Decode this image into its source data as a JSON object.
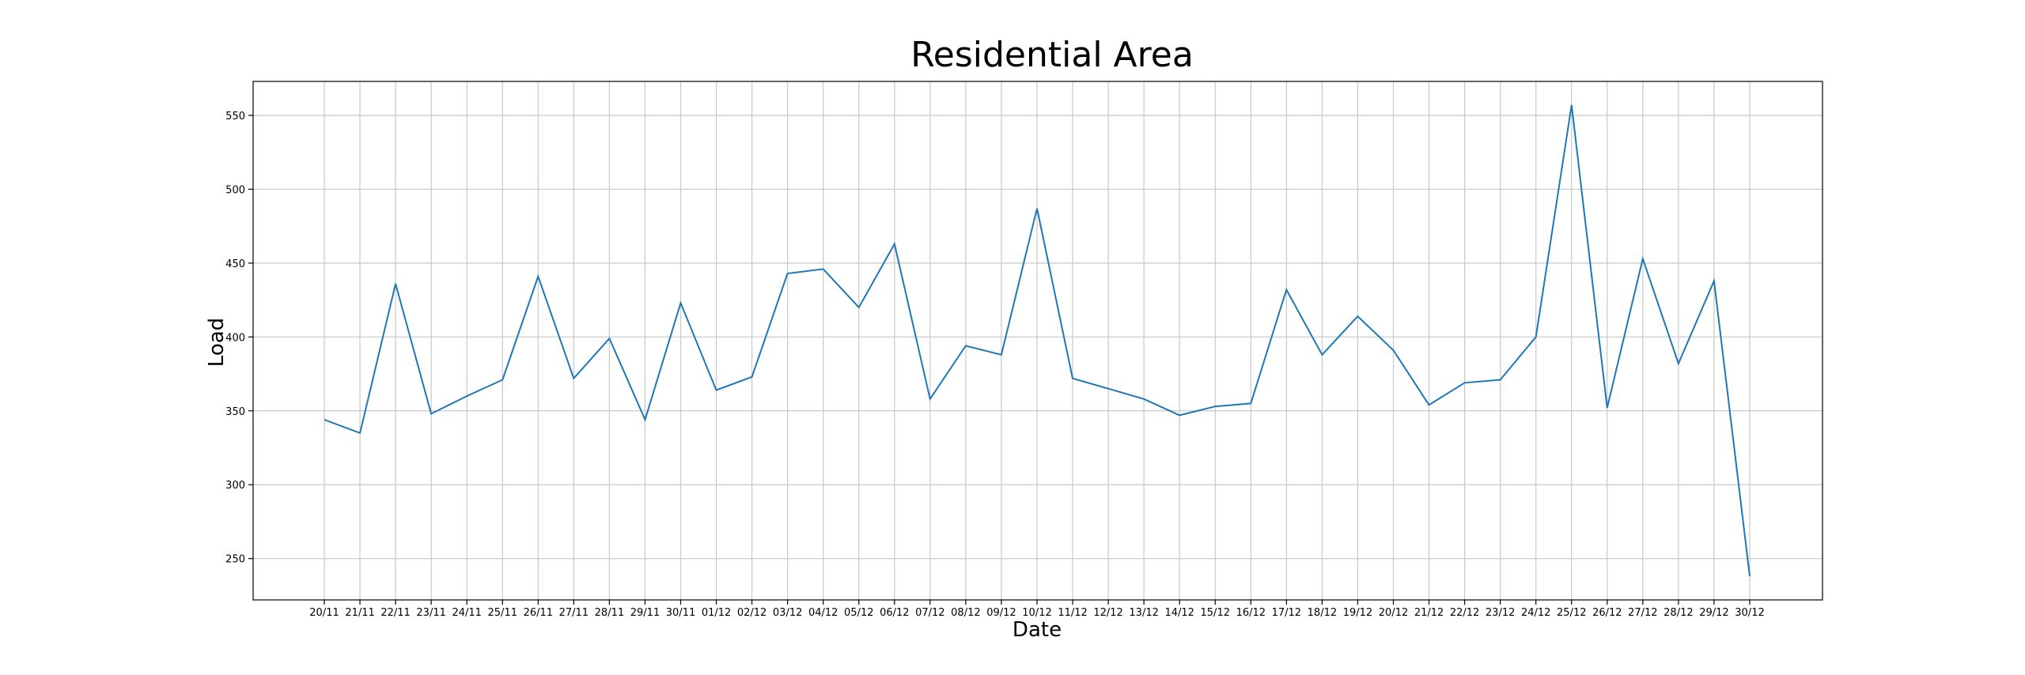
{
  "chart_data": {
    "type": "line",
    "title": "Residential Area",
    "xlabel": "Date",
    "ylabel": "Load",
    "grid": true,
    "ylim": [
      222,
      573
    ],
    "yticks": [
      250,
      300,
      350,
      400,
      450,
      500,
      550
    ],
    "categories": [
      "20/11",
      "21/11",
      "22/11",
      "23/11",
      "24/11",
      "25/11",
      "26/11",
      "27/11",
      "28/11",
      "29/11",
      "30/11",
      "01/12",
      "02/12",
      "03/12",
      "04/12",
      "05/12",
      "06/12",
      "07/12",
      "08/12",
      "09/12",
      "10/12",
      "11/12",
      "12/12",
      "13/12",
      "14/12",
      "15/12",
      "16/12",
      "17/12",
      "18/12",
      "19/12",
      "20/12",
      "21/12",
      "22/12",
      "23/12",
      "24/12",
      "25/12",
      "26/12",
      "27/12",
      "28/12",
      "29/12",
      "30/12"
    ],
    "series": [
      {
        "name": "",
        "color": "#1f77b4",
        "values": [
          344,
          335,
          436,
          348,
          360,
          371,
          441,
          372,
          399,
          344,
          423,
          364,
          373,
          443,
          446,
          420,
          463,
          358,
          394,
          388,
          487,
          372,
          365,
          358,
          347,
          353,
          355,
          432,
          388,
          414,
          391,
          354,
          369,
          371,
          400,
          557,
          352,
          453,
          382,
          438,
          238
        ]
      }
    ]
  }
}
